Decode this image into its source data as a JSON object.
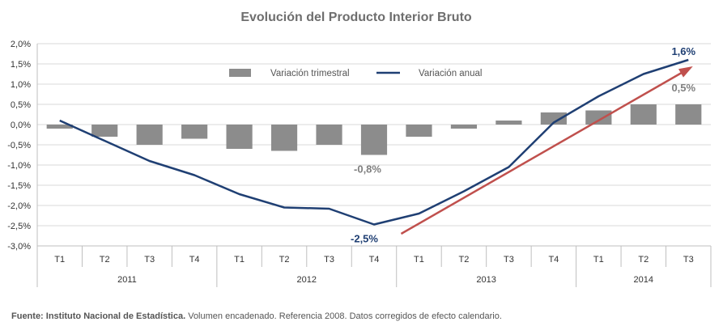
{
  "chart_data": {
    "type": "bar+line",
    "title": "Evolución del Producto Interior Bruto",
    "quarters": [
      "T1",
      "T2",
      "T3",
      "T4",
      "T1",
      "T2",
      "T3",
      "T4",
      "T1",
      "T2",
      "T3",
      "T4",
      "T1",
      "T2",
      "T3"
    ],
    "years": [
      {
        "label": "2011",
        "count": 4
      },
      {
        "label": "2012",
        "count": 4
      },
      {
        "label": "2013",
        "count": 4
      },
      {
        "label": "2014",
        "count": 3
      }
    ],
    "series": [
      {
        "name": "Variación trimestral",
        "kind": "bar",
        "color": "#8c8c8c",
        "values": [
          -0.1,
          -0.3,
          -0.5,
          -0.35,
          -0.6,
          -0.65,
          -0.5,
          -0.75,
          -0.3,
          -0.1,
          0.1,
          0.3,
          0.35,
          0.5,
          0.5
        ]
      },
      {
        "name": "Variación anual",
        "kind": "line",
        "color": "#1f3f73",
        "values": [
          0.1,
          -0.4,
          -0.9,
          -1.25,
          -1.72,
          -2.05,
          -2.08,
          -2.47,
          -2.2,
          -1.65,
          -1.05,
          0.05,
          0.7,
          1.25,
          1.6
        ]
      }
    ],
    "ylim": [
      -3.0,
      2.0
    ],
    "yticks": [
      "2,0%",
      "1,5%",
      "1,0%",
      "0,5%",
      "0,0%",
      "-0,5%",
      "-1,0%",
      "-1,5%",
      "-2,0%",
      "-2,5%",
      "-3,0%"
    ],
    "ytick_values": [
      2.0,
      1.5,
      1.0,
      0.5,
      0.0,
      -0.5,
      -1.0,
      -1.5,
      -2.0,
      -2.5,
      -3.0
    ],
    "legend": {
      "placement": "top-center"
    },
    "trend_arrow": {
      "color": "#c0504d",
      "from": {
        "quarter_index": 8,
        "value": -2.7
      },
      "to": {
        "quarter_index": 14,
        "value": 1.4
      }
    },
    "annotations": [
      {
        "text": "1,6%",
        "color": "#1f3f73",
        "quarter_index": 14,
        "value": 1.6
      },
      {
        "text": "0,5%",
        "color": "#7f7f7f",
        "quarter_index": 14,
        "value": 0.5
      },
      {
        "text": "-0,8%",
        "color": "#7f7f7f",
        "quarter_index": 7,
        "value": -0.75
      },
      {
        "text": "-2,5%",
        "color": "#1f3f73",
        "quarter_index": 7,
        "value": -2.47
      }
    ]
  },
  "footer": {
    "source_label": "Fuente: Instituto Nacional de Estadística.",
    "source_text": " Volumen encadenado. Referencia 2008. Datos corregidos de efecto calendario."
  }
}
